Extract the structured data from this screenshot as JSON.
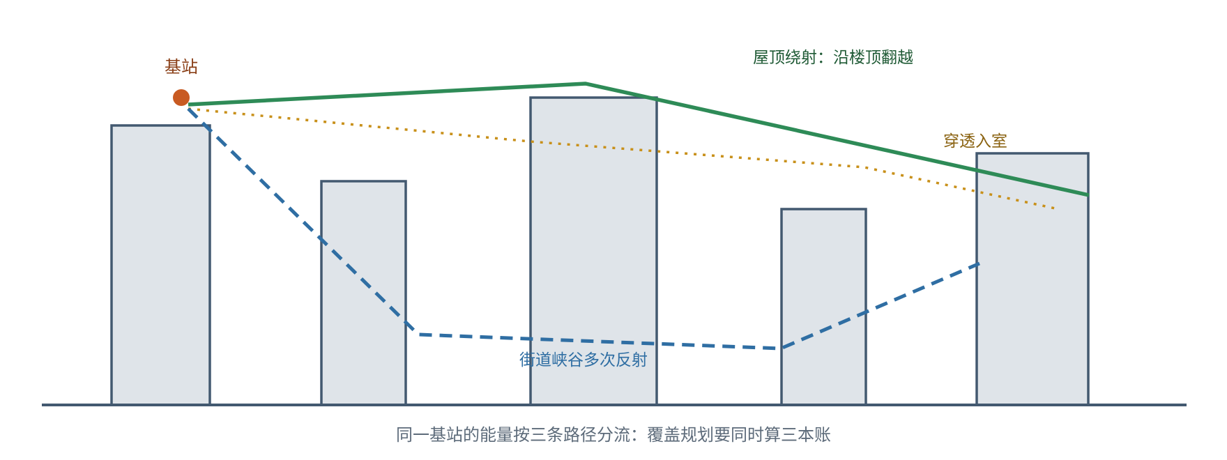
{
  "labels": {
    "base_station": "基站",
    "rooftop_diffraction": "屋顶绕射：沿楼顶翻越",
    "penetration_indoor": "穿透入室",
    "street_canyon": "街道峡谷多次反射"
  },
  "caption": "同一基站的能量按三条路径分流：覆盖规划要同时算三本账",
  "colors": {
    "rooftop_path": "#2e8b57",
    "indoor_path": "#c8901a",
    "street_path": "#2f6ea3",
    "base_station": "#c85a22",
    "building_fill": "#dfe4e9",
    "building_stroke": "#435970"
  }
}
